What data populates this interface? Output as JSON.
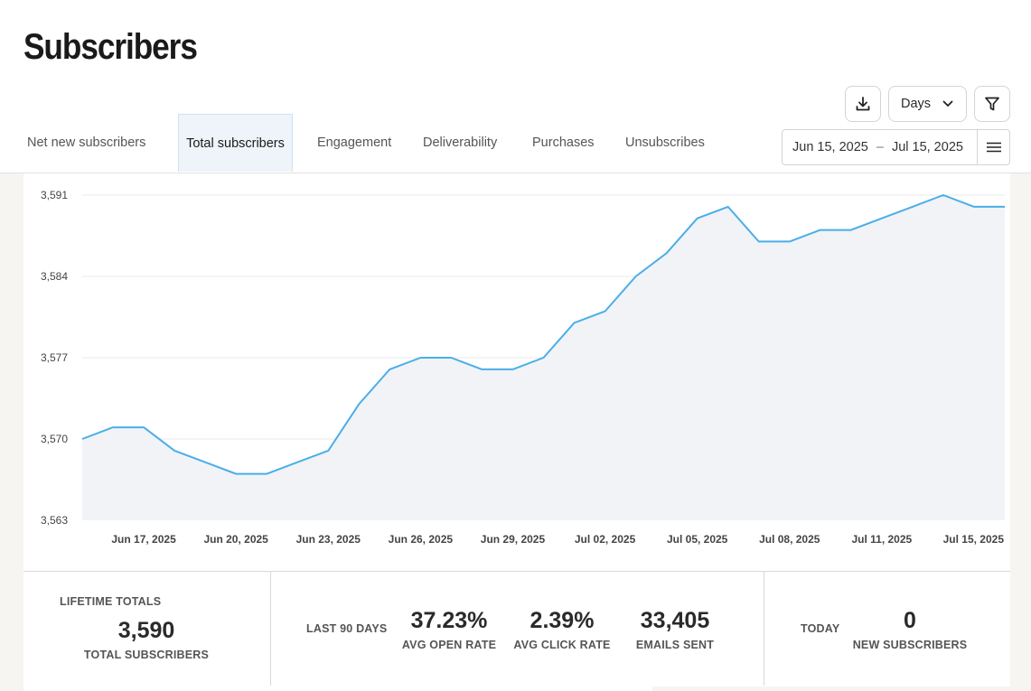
{
  "page": {
    "title": "Subscribers"
  },
  "tabs": [
    {
      "label": "Net new subscribers",
      "active": false
    },
    {
      "label": "Total subscribers",
      "active": true
    },
    {
      "label": "Engagement",
      "active": false
    },
    {
      "label": "Deliverability",
      "active": false
    },
    {
      "label": "Purchases",
      "active": false
    },
    {
      "label": "Unsubscribes",
      "active": false
    }
  ],
  "toolbar": {
    "download_icon": "download-icon",
    "interval_value": "Days",
    "filter_icon": "filter-icon",
    "date_start": "Jun 15, 2025",
    "date_separator": "–",
    "date_end": "Jul 15, 2025",
    "menu_icon": "hamburger-menu-icon"
  },
  "chart_data": {
    "type": "area",
    "y_ticks": [
      "3,563",
      "3,570",
      "3,577",
      "3,584",
      "3,591"
    ],
    "ylim": [
      3563,
      3591
    ],
    "x_tick_labels": [
      "Jun 17, 2025",
      "Jun 20, 2025",
      "Jun 23, 2025",
      "Jun 26, 2025",
      "Jun 29, 2025",
      "Jul 02, 2025",
      "Jul 05, 2025",
      "Jul 08, 2025",
      "Jul 11, 2025",
      "Jul 15, 2025"
    ],
    "x_tick_index": [
      2,
      5,
      8,
      11,
      14,
      17,
      20,
      23,
      26,
      30
    ],
    "dates": [
      "Jun 15",
      "Jun 16",
      "Jun 17",
      "Jun 18",
      "Jun 19",
      "Jun 20",
      "Jun 21",
      "Jun 22",
      "Jun 23",
      "Jun 24",
      "Jun 25",
      "Jun 26",
      "Jun 27",
      "Jun 28",
      "Jun 29",
      "Jun 30",
      "Jul 01",
      "Jul 02",
      "Jul 03",
      "Jul 04",
      "Jul 05",
      "Jul 06",
      "Jul 07",
      "Jul 08",
      "Jul 09",
      "Jul 10",
      "Jul 11",
      "Jul 12",
      "Jul 13",
      "Jul 14",
      "Jul 15"
    ],
    "values": [
      3570,
      3571,
      3571,
      3569,
      3568,
      3567,
      3567,
      3568,
      3569,
      3573,
      3576,
      3577,
      3577,
      3576,
      3576,
      3577,
      3580,
      3581,
      3584,
      3586,
      3589,
      3590,
      3587,
      3587,
      3588,
      3588,
      3589,
      3590,
      3591,
      3590,
      3590
    ],
    "grid": true,
    "line_color": "#4aaee8",
    "fill_color": "#f1f3f7"
  },
  "stats": {
    "lifetime": {
      "label": "LIFETIME TOTALS",
      "value": "3,590",
      "sub": "TOTAL SUBSCRIBERS"
    },
    "last90": {
      "label": "LAST 90 DAYS",
      "open_rate": {
        "value": "37.23%",
        "sub": "AVG OPEN RATE"
      },
      "click_rate": {
        "value": "2.39%",
        "sub": "AVG CLICK RATE"
      },
      "emails_sent": {
        "value": "33,405",
        "sub": "EMAILS SENT"
      }
    },
    "today": {
      "label": "TODAY",
      "value": "0",
      "sub": "NEW SUBSCRIBERS"
    }
  }
}
